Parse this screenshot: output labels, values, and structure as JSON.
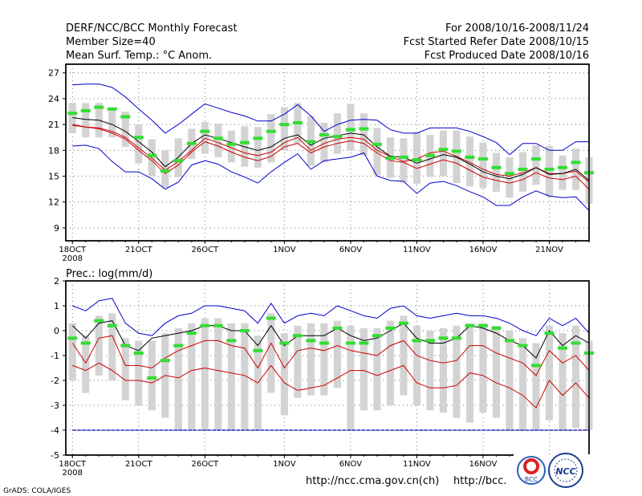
{
  "header": {
    "left": [
      "DERF/NCC/BCC Monthly Forecast",
      "Member Size=40",
      "Mean Surf. Temp.: °C Anom."
    ],
    "right": [
      "For 2008/10/16-2008/11/24",
      "Fcst Started Refer Date 2008/10/15",
      "Fcst Produced Date 2008/10/16"
    ]
  },
  "footer": {
    "grads": "GrADS: COLA/IGES",
    "url1": "http://ncc.cma.gov.cn(ch)",
    "url2": "http://bcc.",
    "logo_bcc": "BCC",
    "logo_ncc": "NCC"
  },
  "colors": {
    "envelope": "#0000cc",
    "spread": "#cc0000",
    "mean": "#000000",
    "obs": "#33dd33",
    "box": "#d3d3d3",
    "zero_line": "#0000aa"
  },
  "chart_data": [
    {
      "type": "line",
      "title": "Mean Surf. Temp.: °C Anom.",
      "ylim": [
        7.5,
        28
      ],
      "yticks": [
        9,
        12,
        15,
        18,
        21,
        24,
        27
      ],
      "xticks": [
        {
          "day": 0,
          "label": "18OCT",
          "label2": "2008"
        },
        {
          "day": 5,
          "label": "21OCT"
        },
        {
          "day": 10,
          "label": "26OCT"
        },
        {
          "day": 16,
          "label": "1NOV"
        },
        {
          "day": 21,
          "label": "6NOV"
        },
        {
          "day": 26,
          "label": "11NOV"
        },
        {
          "day": 31,
          "label": "16NOV"
        },
        {
          "day": 36,
          "label": "21NOV"
        }
      ],
      "series": [
        {
          "name": "max",
          "values": [
            25.6,
            25.7,
            25.7,
            25.3,
            24.2,
            22.8,
            21.5,
            20.0,
            21.0,
            22.2,
            23.4,
            22.9,
            22.4,
            22.0,
            21.4,
            21.4,
            22.2,
            23.3,
            22.0,
            20.2,
            21.0,
            21.5,
            21.6,
            21.5,
            20.4,
            20.0,
            20.0,
            20.6,
            20.6,
            20.6,
            20.2,
            19.6,
            18.9,
            17.5,
            18.8,
            18.8,
            18.0,
            18.0,
            19.0,
            19.0
          ]
        },
        {
          "name": "upper",
          "values": [
            21.0,
            20.7,
            20.6,
            20.2,
            19.5,
            18.3,
            17.1,
            15.7,
            16.7,
            18.0,
            19.4,
            18.9,
            18.3,
            17.7,
            17.4,
            17.8,
            18.9,
            19.5,
            18.0,
            18.8,
            19.3,
            19.5,
            19.3,
            18.0,
            17.3,
            16.7,
            17.0,
            17.7,
            17.9,
            17.3,
            16.6,
            15.8,
            15.2,
            15.0,
            15.4,
            16.0,
            15.3,
            15.3,
            15.6,
            14.3
          ]
        },
        {
          "name": "mean",
          "values": [
            21.8,
            21.6,
            21.5,
            21.0,
            20.2,
            19.0,
            17.8,
            16.1,
            17.2,
            18.8,
            19.8,
            19.4,
            18.9,
            18.4,
            18.0,
            18.4,
            19.4,
            19.8,
            18.6,
            19.4,
            19.7,
            20.0,
            19.8,
            18.4,
            17.3,
            17.2,
            16.5,
            17.0,
            17.5,
            17.2,
            16.4,
            15.5,
            15.0,
            14.7,
            15.2,
            16.0,
            15.2,
            15.3,
            15.8,
            14.5
          ]
        },
        {
          "name": "lower",
          "values": [
            20.9,
            20.7,
            20.5,
            20.0,
            19.3,
            18.0,
            16.8,
            15.3,
            16.3,
            17.8,
            19.0,
            18.5,
            17.8,
            17.2,
            16.8,
            17.3,
            18.4,
            18.8,
            17.7,
            18.4,
            18.8,
            19.1,
            18.8,
            17.7,
            16.8,
            16.6,
            15.9,
            16.4,
            16.9,
            16.5,
            15.7,
            14.9,
            14.5,
            14.2,
            14.6,
            15.4,
            14.8,
            14.6,
            15.0,
            13.5
          ]
        },
        {
          "name": "min",
          "values": [
            18.5,
            18.6,
            18.2,
            16.7,
            15.5,
            15.5,
            14.7,
            13.5,
            14.3,
            16.3,
            16.8,
            16.4,
            15.5,
            14.9,
            14.2,
            15.5,
            16.6,
            17.6,
            15.8,
            16.8,
            17.0,
            17.2,
            17.7,
            15.0,
            14.5,
            14.4,
            13.0,
            14.2,
            14.4,
            13.9,
            13.2,
            12.6,
            11.6,
            11.6,
            12.6,
            13.3,
            12.7,
            12.5,
            12.6,
            11.0
          ]
        },
        {
          "name": "observed",
          "values": [
            22.3,
            22.6,
            23.0,
            22.8,
            21.9,
            19.5,
            17.4,
            15.6,
            16.8,
            18.8,
            20.2,
            19.4,
            18.7,
            18.9,
            19.4,
            20.2,
            21.0,
            21.2,
            19.0,
            19.8,
            19.6,
            20.4,
            20.5,
            18.7,
            17.1,
            17.2,
            16.9,
            17.4,
            18.1,
            17.9,
            17.2,
            17.0,
            16.0,
            15.3,
            15.8,
            17.0,
            15.8,
            16.0,
            16.6,
            15.4
          ]
        }
      ],
      "box": {
        "high": [
          23.5,
          23.5,
          23.5,
          23.0,
          22.5,
          21.0,
          19.3,
          18.0,
          19.4,
          20.5,
          21.3,
          21.1,
          20.3,
          20.8,
          20.7,
          22.2,
          23.0,
          23.5,
          22.0,
          21.2,
          22.3,
          23.4,
          22.3,
          20.6,
          19.5,
          19.4,
          20.1,
          19.8,
          20.3,
          20.3,
          19.6,
          18.9,
          17.7,
          17.2,
          17.8,
          18.6,
          18.5,
          17.4,
          18.2,
          17.2
        ],
        "low": [
          20.0,
          19.5,
          19.5,
          19.5,
          18.4,
          16.5,
          15.0,
          13.7,
          14.9,
          17.0,
          17.6,
          17.2,
          16.6,
          16.1,
          16.0,
          16.6,
          18.0,
          18.8,
          16.2,
          16.6,
          17.6,
          18.0,
          17.4,
          15.1,
          14.8,
          14.3,
          14.1,
          14.9,
          15.0,
          14.2,
          13.8,
          13.6,
          13.2,
          12.5,
          13.2,
          14.0,
          12.6,
          13.4,
          13.4,
          11.8
        ]
      }
    },
    {
      "type": "line",
      "title": "Prec.: log(mm/d)",
      "ylim": [
        -5,
        2
      ],
      "yticks": [
        -5,
        -4,
        -3,
        -2,
        -1,
        0,
        1,
        2
      ],
      "xticks": [
        {
          "day": 0,
          "label": "18OCT",
          "label2": "2008"
        },
        {
          "day": 5,
          "label": "21OCT"
        },
        {
          "day": 10,
          "label": "26OCT"
        },
        {
          "day": 16,
          "label": "1NOV"
        },
        {
          "day": 21,
          "label": "6NOV"
        },
        {
          "day": 26,
          "label": "11NOV"
        },
        {
          "day": 31,
          "label": "16NOV"
        },
        {
          "day": 36,
          "label": "21NOV"
        }
      ],
      "series": [
        {
          "name": "max",
          "values": [
            1.0,
            0.8,
            1.2,
            1.3,
            0.3,
            -0.1,
            -0.2,
            0.3,
            0.6,
            0.7,
            1.0,
            1.0,
            0.9,
            0.8,
            0.3,
            1.1,
            0.3,
            0.6,
            0.7,
            0.6,
            1.0,
            0.8,
            0.6,
            0.5,
            0.9,
            1.0,
            0.6,
            0.5,
            0.6,
            0.7,
            0.6,
            0.6,
            0.5,
            0.3,
            0.0,
            -0.2,
            0.5,
            0.2,
            0.5,
            -0.1
          ]
        },
        {
          "name": "mean",
          "values": [
            0.2,
            -0.3,
            0.3,
            0.4,
            -0.6,
            -0.8,
            -0.3,
            -0.2,
            -0.1,
            0.0,
            0.2,
            0.2,
            0.0,
            0.0,
            -0.6,
            0.2,
            -0.6,
            -0.2,
            -0.2,
            -0.2,
            0.1,
            -0.2,
            -0.4,
            -0.3,
            0.0,
            0.3,
            -0.3,
            -0.5,
            -0.5,
            -0.3,
            0.2,
            0.1,
            -0.1,
            -0.4,
            -0.6,
            -1.1,
            0.0,
            -0.6,
            -0.2,
            -0.5
          ]
        },
        {
          "name": "upper",
          "values": [
            -0.5,
            -1.3,
            -0.3,
            -0.2,
            -1.4,
            -1.4,
            -1.5,
            -1.1,
            -0.8,
            -0.6,
            -0.4,
            -0.4,
            -0.6,
            -0.7,
            -1.5,
            -0.5,
            -1.5,
            -0.8,
            -0.7,
            -0.8,
            -0.6,
            -0.8,
            -0.9,
            -1.0,
            -0.6,
            -0.4,
            -1.0,
            -1.2,
            -1.3,
            -1.2,
            -0.6,
            -0.6,
            -0.9,
            -1.1,
            -1.3,
            -1.8,
            -0.8,
            -1.3,
            -1.0,
            -1.6
          ]
        },
        {
          "name": "lower",
          "values": [
            -1.4,
            -1.6,
            -1.3,
            -1.6,
            -2.0,
            -2.0,
            -2.1,
            -1.8,
            -1.9,
            -1.6,
            -1.5,
            -1.6,
            -1.7,
            -1.8,
            -2.1,
            -1.4,
            -2.1,
            -2.4,
            -2.3,
            -2.2,
            -1.9,
            -1.6,
            -1.6,
            -1.8,
            -1.6,
            -1.4,
            -2.1,
            -2.3,
            -2.3,
            -2.2,
            -1.7,
            -1.8,
            -2.1,
            -2.3,
            -2.6,
            -3.1,
            -2.0,
            -2.6,
            -2.1,
            -2.7
          ]
        },
        {
          "name": "zero",
          "values": [
            -4,
            -4,
            -4,
            -4,
            -4,
            -4,
            -4,
            -4,
            -4,
            -4,
            -4,
            -4,
            -4,
            -4,
            -4,
            -4,
            -4,
            -4,
            -4,
            -4,
            -4,
            -4,
            -4,
            -4,
            -4,
            -4,
            -4,
            -4,
            -4,
            -4,
            -4,
            -4,
            -4,
            -4,
            -4,
            -4,
            -4,
            -4,
            -4,
            -4
          ]
        },
        {
          "name": "observed",
          "values": [
            -0.3,
            -0.5,
            0.4,
            0.2,
            -0.6,
            -0.9,
            -1.9,
            -1.2,
            -0.6,
            -0.1,
            0.2,
            0.2,
            -0.4,
            0.0,
            -0.8,
            0.5,
            -0.5,
            -0.2,
            -0.4,
            -0.5,
            0.1,
            -0.5,
            -0.5,
            -0.2,
            0.1,
            0.3,
            -0.4,
            -0.4,
            -0.3,
            -0.3,
            0.2,
            0.2,
            0.1,
            -0.4,
            -0.6,
            -1.4,
            -0.1,
            -0.7,
            -0.5,
            -0.9
          ]
        }
      ],
      "box": {
        "high": [
          0.3,
          -0.2,
          0.6,
          0.7,
          -0.3,
          -0.4,
          -0.4,
          -0.1,
          0.1,
          0.3,
          0.5,
          0.5,
          0.3,
          0.3,
          -0.2,
          0.7,
          -0.1,
          0.2,
          0.3,
          0.3,
          0.4,
          0.2,
          0.1,
          0.1,
          0.4,
          0.6,
          0.2,
          0.0,
          0.1,
          0.2,
          0.3,
          0.3,
          0.2,
          0.0,
          -0.3,
          -0.5,
          0.2,
          -0.1,
          0.2,
          -0.4
        ],
        "low": [
          -2.0,
          -2.5,
          -1.8,
          -2.0,
          -2.8,
          -3.0,
          -3.2,
          -3.5,
          -4.0,
          -4.0,
          -4.0,
          -4.0,
          -4.0,
          -4.0,
          -4.0,
          -2.5,
          -3.4,
          -2.7,
          -2.6,
          -2.6,
          -2.3,
          -4.0,
          -3.2,
          -3.2,
          -3.0,
          -2.6,
          -3.0,
          -3.2,
          -3.3,
          -3.5,
          -3.7,
          -3.3,
          -3.5,
          -4.0,
          -4.0,
          -4.0,
          -3.6,
          -4.0,
          -3.9,
          -4.0
        ]
      }
    }
  ]
}
